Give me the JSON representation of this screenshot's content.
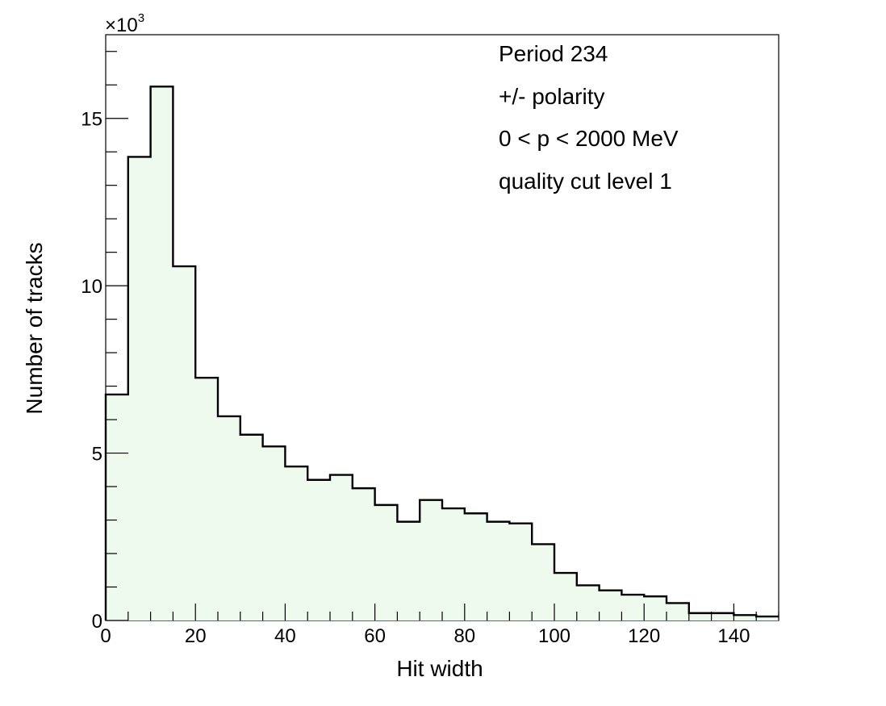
{
  "chart_data": {
    "type": "histogram",
    "xlabel": "Hit width",
    "ylabel": "Number of tracks",
    "y_multiplier": {
      "base": "×10",
      "exponent": "3"
    },
    "xlim": [
      0,
      150
    ],
    "ylim": [
      0,
      17.5
    ],
    "x_ticks": [
      0,
      20,
      40,
      60,
      80,
      100,
      120,
      140
    ],
    "y_ticks": [
      0,
      5,
      10,
      15
    ],
    "y_tick_labels": [
      "0",
      "5",
      "10",
      "15"
    ],
    "bin_width": 5,
    "bin_edges": [
      0,
      5,
      10,
      15,
      20,
      25,
      30,
      35,
      40,
      45,
      50,
      55,
      60,
      65,
      70,
      75,
      80,
      85,
      90,
      95,
      100,
      105,
      110,
      115,
      120,
      125,
      130,
      135,
      140,
      145,
      150
    ],
    "values": [
      6.75,
      13.85,
      15.95,
      10.58,
      7.25,
      6.1,
      5.55,
      5.2,
      4.6,
      4.2,
      4.35,
      3.95,
      3.45,
      2.95,
      3.6,
      3.35,
      3.2,
      2.95,
      2.9,
      2.28,
      1.42,
      1.05,
      0.9,
      0.77,
      0.72,
      0.52,
      0.22,
      0.22,
      0.16,
      0.12
    ],
    "fill_color": "#eefaee",
    "line_color": "#000000",
    "annotations": [
      "Period 234",
      "+/- polarity",
      "0 < p < 2000 MeV",
      "quality cut level 1"
    ],
    "grid": false,
    "legend": "none"
  }
}
